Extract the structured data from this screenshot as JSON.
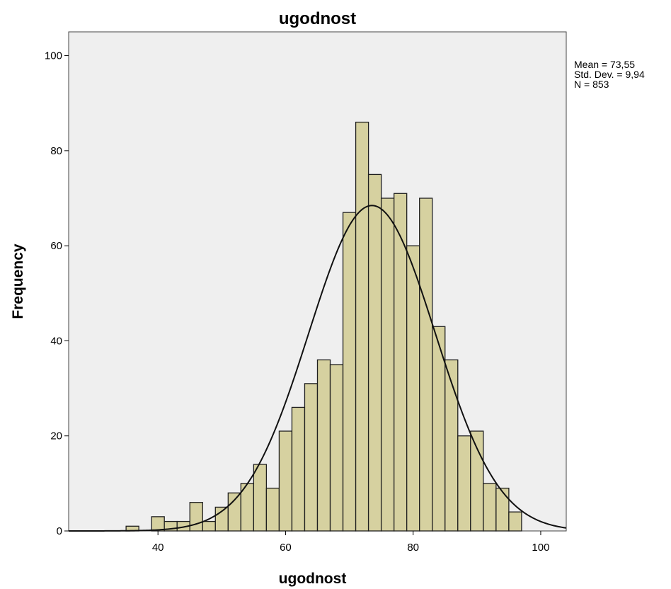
{
  "chart_data": {
    "type": "bar",
    "subtype": "histogram",
    "title": "ugodnost",
    "xlabel": "ugodnost",
    "ylabel": "Frequency",
    "xlim": [
      26,
      104
    ],
    "ylim": [
      0,
      105
    ],
    "x_ticks": [
      40,
      60,
      80,
      100
    ],
    "y_ticks": [
      0,
      20,
      40,
      60,
      80,
      100
    ],
    "bin_width": 2,
    "bin_starts": [
      35,
      37,
      39,
      41,
      43,
      45,
      47,
      49,
      51,
      53,
      55,
      57,
      59,
      61,
      63,
      65,
      67,
      69,
      71,
      73,
      75,
      77,
      79,
      81,
      83,
      85,
      87,
      89,
      91,
      93,
      95
    ],
    "values": [
      1,
      0,
      3,
      2,
      2,
      6,
      2,
      5,
      8,
      10,
      14,
      9,
      21,
      26,
      31,
      36,
      35,
      67,
      86,
      75,
      70,
      71,
      60,
      70,
      43,
      36,
      20,
      21,
      10,
      9,
      4
    ],
    "normal_curve": {
      "mean": 73.55,
      "std_dev": 9.94,
      "n": 853
    },
    "grid": false,
    "bar_color": "#d6d1a0",
    "bar_edge_color": "#1f1f1f",
    "plot_background": "#efefef"
  },
  "stats_box": {
    "lines": [
      "Mean = 73,55",
      "Std. Dev. = 9,94",
      "N = 853"
    ]
  }
}
